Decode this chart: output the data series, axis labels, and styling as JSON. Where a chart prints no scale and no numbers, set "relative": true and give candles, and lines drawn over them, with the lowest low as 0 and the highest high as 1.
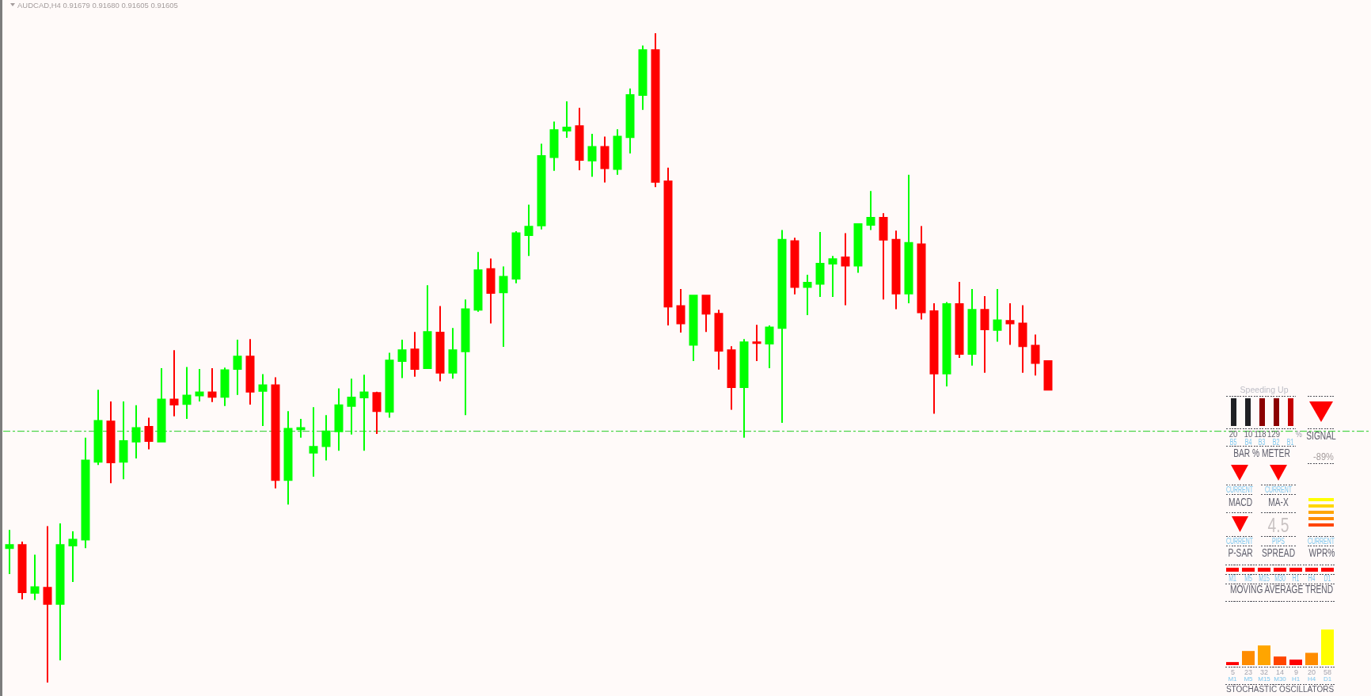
{
  "chart_data": [
    {
      "type": "candlestick",
      "title": "AUDCAD,H4 0.91679 0.91680 0.91605 0.91605",
      "relative": true,
      "categories": [
        null,
        null,
        null,
        null,
        null,
        null,
        null,
        null,
        null,
        null,
        null,
        null,
        null,
        null,
        null,
        null,
        null,
        null,
        null,
        null,
        null,
        null,
        null,
        null,
        null,
        null,
        null,
        null,
        null,
        null,
        null,
        null,
        null,
        null,
        null,
        null,
        null,
        null,
        null,
        null,
        null,
        null,
        null,
        null,
        null,
        null,
        null,
        null,
        null,
        null,
        null,
        null,
        null,
        null,
        null,
        null,
        null,
        null,
        null,
        null,
        null,
        null,
        null,
        null,
        null,
        null,
        null,
        null,
        null,
        null,
        null,
        null,
        null,
        null,
        null,
        null,
        null,
        null,
        null,
        null,
        null,
        null,
        null
      ],
      "ohlc": [
        [
          0.207,
          0.235,
          0.167,
          0.212
        ],
        [
          0.212,
          0.217,
          0.128,
          0.139
        ],
        [
          0.138,
          0.197,
          0.127,
          0.147
        ],
        [
          0.146,
          0.241,
          0,
          0.121
        ],
        [
          0.121,
          0.245,
          0.034,
          0.212
        ],
        [
          0.211,
          0.233,
          0.155,
          0.22
        ],
        [
          0.22,
          0.377,
          0.207,
          0.342
        ],
        [
          0.34,
          0.451,
          0.335,
          0.403
        ],
        [
          0.402,
          0.433,
          0.307,
          0.339
        ],
        [
          0.34,
          0.433,
          0.313,
          0.372
        ],
        [
          0.371,
          0.427,
          0.345,
          0.392
        ],
        [
          0.394,
          0.408,
          0.359,
          0.372
        ],
        [
          0.371,
          0.484,
          0.371,
          0.436
        ],
        [
          0.436,
          0.512,
          0.41,
          0.428
        ],
        [
          0.429,
          0.486,
          0.406,
          0.442
        ],
        [
          0.442,
          0.483,
          0.433,
          0.447
        ],
        [
          0.447,
          0.484,
          0.432,
          0.44
        ],
        [
          0.44,
          0.485,
          0.426,
          0.481
        ],
        [
          0.483,
          0.528,
          0.443,
          0.502
        ],
        [
          0.502,
          0.529,
          0.428,
          0.448
        ],
        [
          0.449,
          0.475,
          0.395,
          0.458
        ],
        [
          0.458,
          0.47,
          0.299,
          0.312
        ],
        [
          0.312,
          0.418,
          0.274,
          0.391
        ],
        [
          0.39,
          0.406,
          0.377,
          0.392
        ],
        [
          0.354,
          0.424,
          0.317,
          0.363
        ],
        [
          0.364,
          0.412,
          0.342,
          0.387
        ],
        [
          0.387,
          0.453,
          0.357,
          0.427
        ],
        [
          0.426,
          0.468,
          0.382,
          0.439
        ],
        [
          0.439,
          0.474,
          0.357,
          0.447
        ],
        [
          0.446,
          0.448,
          0.383,
          0.418
        ],
        [
          0.417,
          0.508,
          0.408,
          0.496
        ],
        [
          0.495,
          0.528,
          0.469,
          0.512
        ],
        [
          0.513,
          0.54,
          0.471,
          0.483
        ],
        [
          0.484,
          0.612,
          0.483,
          0.54
        ],
        [
          0.539,
          0.58,
          0.464,
          0.477
        ],
        [
          0.477,
          0.546,
          0.468,
          0.512
        ],
        [
          0.51,
          0.59,
          0.412,
          0.575
        ],
        [
          0.574,
          0.663,
          0.571,
          0.635
        ],
        [
          0.637,
          0.653,
          0.553,
          0.6
        ],
        [
          0.601,
          0.641,
          0.517,
          0.625
        ],
        [
          0.622,
          0.695,
          0.615,
          0.692
        ],
        [
          0.689,
          0.736,
          0.657,
          0.702
        ],
        [
          0.704,
          0.83,
          0.698,
          0.811
        ],
        [
          0.809,
          0.864,
          0.788,
          0.851
        ],
        [
          0.85,
          0.895,
          0.839,
          0.855
        ],
        [
          0.857,
          0.885,
          0.789,
          0.805
        ],
        [
          0.804,
          0.845,
          0.779,
          0.825
        ],
        [
          0.825,
          0.841,
          0.77,
          0.792
        ],
        [
          0.791,
          0.852,
          0.782,
          0.841
        ],
        [
          0.84,
          0.915,
          0.815,
          0.905
        ],
        [
          0.905,
          0.981,
          0.882,
          0.974
        ],
        [
          0.974,
          1,
          0.763,
          0.771
        ],
        [
          0.772,
          0.793,
          0.55,
          0.579
        ],
        [
          0.58,
          0.606,
          0.539,
          0.553
        ],
        [
          0.52,
          0.596,
          0.495,
          0.596
        ],
        [
          0.596,
          0.597,
          0.54,
          0.568
        ],
        [
          0.568,
          0.574,
          0.482,
          0.511
        ],
        [
          0.512,
          0.518,
          0.42,
          0.455
        ],
        [
          0.455,
          0.529,
          0.377,
          0.524
        ],
        [
          0.524,
          0.551,
          0.495,
          0.523
        ],
        [
          0.522,
          0.55,
          0.484,
          0.547
        ],
        [
          0.546,
          0.697,
          0.4,
          0.682
        ],
        [
          0.68,
          0.685,
          0.598,
          0.609
        ],
        [
          0.609,
          0.628,
          0.566,
          0.616
        ],
        [
          0.614,
          0.694,
          0.594,
          0.645
        ],
        [
          0.645,
          0.657,
          0.594,
          0.652
        ],
        [
          0.655,
          0.692,
          0.581,
          0.642
        ],
        [
          0.642,
          0.707,
          0.631,
          0.706
        ],
        [
          0.705,
          0.757,
          0.697,
          0.716
        ],
        [
          0.716,
          0.723,
          0.59,
          0.682
        ],
        [
          0.682,
          0.696,
          0.575,
          0.599
        ],
        [
          0.599,
          0.782,
          0.584,
          0.677
        ],
        [
          0.675,
          0.703,
          0.559,
          0.57
        ],
        [
          0.572,
          0.584,
          0.414,
          0.476
        ],
        [
          0.476,
          0.586,
          0.456,
          0.583
        ],
        [
          0.583,
          0.617,
          0.5,
          0.506
        ],
        [
          0.506,
          0.606,
          0.488,
          0.574
        ],
        [
          0.574,
          0.595,
          0.477,
          0.544
        ],
        [
          0.543,
          0.606,
          0.525,
          0.558
        ],
        [
          0.557,
          0.584,
          0.52,
          0.553
        ],
        [
          0.553,
          0.581,
          0.477,
          0.518
        ],
        [
          0.519,
          0.536,
          0.473,
          0.492
        ],
        [
          0.495,
          0.495,
          0.451,
          0.451
        ]
      ],
      "colors": [
        "#00ff00",
        "#ff0000",
        "#00ff00",
        "#ff0000",
        "#00ff00",
        "#00ff00",
        "#00ff00",
        "#00ff00",
        "#ff0000",
        "#00ff00",
        "#00ff00",
        "#ff0000",
        "#00ff00",
        "#ff0000",
        "#00ff00",
        "#00ff00",
        "#ff0000",
        "#00ff00",
        "#00ff00",
        "#ff0000",
        "#00ff00",
        "#ff0000",
        "#00ff00",
        "#00ff00",
        "#00ff00",
        "#00ff00",
        "#00ff00",
        "#00ff00",
        "#00ff00",
        "#ff0000",
        "#00ff00",
        "#00ff00",
        "#ff0000",
        "#00ff00",
        "#ff0000",
        "#00ff00",
        "#00ff00",
        "#00ff00",
        "#ff0000",
        "#00ff00",
        "#00ff00",
        "#00ff00",
        "#00ff00",
        "#00ff00",
        "#00ff00",
        "#ff0000",
        "#00ff00",
        "#ff0000",
        "#00ff00",
        "#00ff00",
        "#00ff00",
        "#ff0000",
        "#ff0000",
        "#ff0000",
        "#00ff00",
        "#ff0000",
        "#ff0000",
        "#ff0000",
        "#00ff00",
        "#ff0000",
        "#00ff00",
        "#00ff00",
        "#ff0000",
        "#00ff00",
        "#00ff00",
        "#00ff00",
        "#ff0000",
        "#00ff00",
        "#00ff00",
        "#ff0000",
        "#ff0000",
        "#00ff00",
        "#ff0000",
        "#ff0000",
        "#00ff00",
        "#ff0000",
        "#00ff00",
        "#ff0000",
        "#00ff00",
        "#ff0000",
        "#ff0000",
        "#ff0000",
        "#ff0000"
      ],
      "ref_lines": [
        {
          "axis": "y",
          "value": 0.387,
          "color": "#22cc22",
          "line_style": "dashdot"
        }
      ]
    },
    {
      "type": "other",
      "annotations": [
        "Speeding Up",
        "20",
        "10",
        "118",
        "129",
        "%",
        "SIGNAL",
        "B5",
        "B4",
        "B3",
        "B2",
        "B1",
        "BAR % METER",
        "-89%",
        "CURRENT",
        "CURRENT",
        "MACD",
        "MA-X",
        "4.5",
        "CURRENT",
        "PIPS",
        "CURRENT",
        "P-SAR",
        "SPREAD",
        "WPR%",
        "M1",
        "M5",
        "M15",
        "M30",
        "H1",
        "H4",
        "D1",
        "MOVING AVERAGE TREND"
      ]
    },
    {
      "type": "bar",
      "categories": [
        "M1",
        "M5",
        "M15",
        "M30",
        "H1",
        "H4",
        "D1"
      ],
      "values": [
        5,
        23,
        32,
        14,
        9,
        20,
        58
      ],
      "colors": [
        "#ff0000",
        "#ff8c00",
        "#ffa500",
        "#ff4500",
        "#ff0000",
        "#ff8c00",
        "#ffff00"
      ],
      "data_labels": true,
      "xlabel": "STOCHASTIC OSCILLATORS",
      "tick_labels": "x"
    }
  ]
}
